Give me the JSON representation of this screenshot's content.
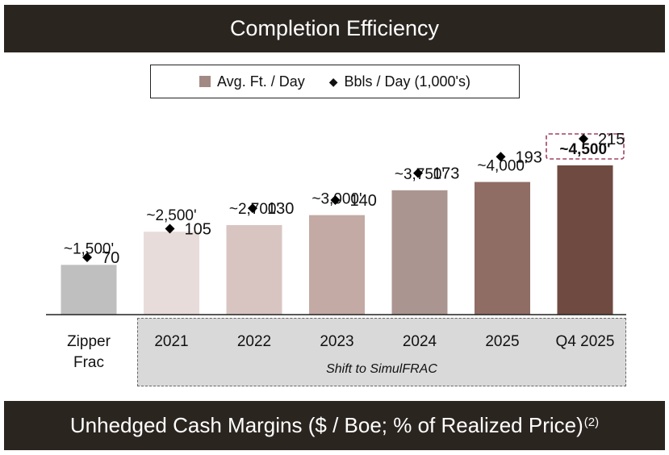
{
  "header": {
    "title": "Completion Efficiency"
  },
  "footer": {
    "title": "Unhedged Cash Margins ($ / Boe; % of Realized Price)",
    "superscript": "(2)"
  },
  "legend": {
    "bar_label": "Avg. Ft. / Day",
    "marker_label": "Bbls / Day (1,000's)",
    "marker_glyph": "◆"
  },
  "shift_label": "Shift to SimulFRAC",
  "chart_data": {
    "type": "bar",
    "title": "Completion Efficiency",
    "categories": [
      "Zipper\nFrac",
      "2021",
      "2022",
      "2023",
      "2024",
      "2025",
      "Q4 2025"
    ],
    "series": [
      {
        "name": "Avg. Ft. / Day",
        "kind": "bar",
        "values": [
          1500,
          2500,
          2700,
          3000,
          3750,
          4000,
          4500
        ],
        "labels": [
          "~1,500'",
          "~2,500'",
          "~2,700'",
          "~3,000'",
          "~3,750'",
          "~4,000'",
          "~4,500'"
        ]
      },
      {
        "name": "Bbls / Day (1,000's)",
        "kind": "marker",
        "values": [
          70,
          105,
          130,
          140,
          173,
          193,
          215
        ]
      }
    ],
    "bar_colors": [
      "#bfbfbf",
      "#e8dcda",
      "#d8c5c1",
      "#c3aaa4",
      "#ab9590",
      "#8f6d65",
      "#6f4a40"
    ],
    "highlight_color": "#a04060",
    "ylim_ft": [
      0,
      4500
    ],
    "ylim_bbls": [
      0,
      280
    ]
  }
}
